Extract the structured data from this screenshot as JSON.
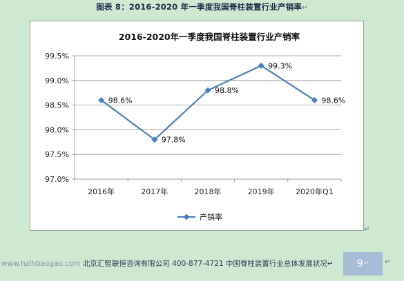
{
  "caption": {
    "text": "图表 8：2016-2020 年一季度我国脊柱装置行业产销率",
    "mark": "↵"
  },
  "chart_data": {
    "type": "line",
    "title": "2016-2020年一季度我国脊柱装置行业产销率",
    "categories": [
      "2016年",
      "2017年",
      "2018年",
      "2019年",
      "2020年Q1"
    ],
    "series": [
      {
        "name": "产销率",
        "values": [
          98.6,
          97.8,
          98.8,
          99.3,
          98.6
        ],
        "data_labels": [
          "98.6%",
          "97.8%",
          "98.8%",
          "99.3%",
          "98.6%"
        ],
        "color": "#4a7ebb",
        "marker": "diamond"
      }
    ],
    "ylim": [
      97.0,
      99.5
    ],
    "yticks": [
      97.0,
      97.5,
      98.0,
      98.5,
      99.0,
      99.5
    ],
    "ytick_labels": [
      "97.0%",
      "97.5%",
      "98.0%",
      "98.5%",
      "99.0%",
      "99.5%"
    ],
    "grid": true,
    "legend": "bottom"
  },
  "corner_mark": "↵",
  "footer": {
    "url": "www.hzlhbaogao.com",
    "company": "北京汇智联恒咨询有限公司",
    "phone": "400-877-4721",
    "report_title": "中国脊柱装置行业总体发展状况",
    "title_mark": "↵",
    "page_number": "9",
    "page_mark": "↵",
    "end_mark": "↵"
  }
}
